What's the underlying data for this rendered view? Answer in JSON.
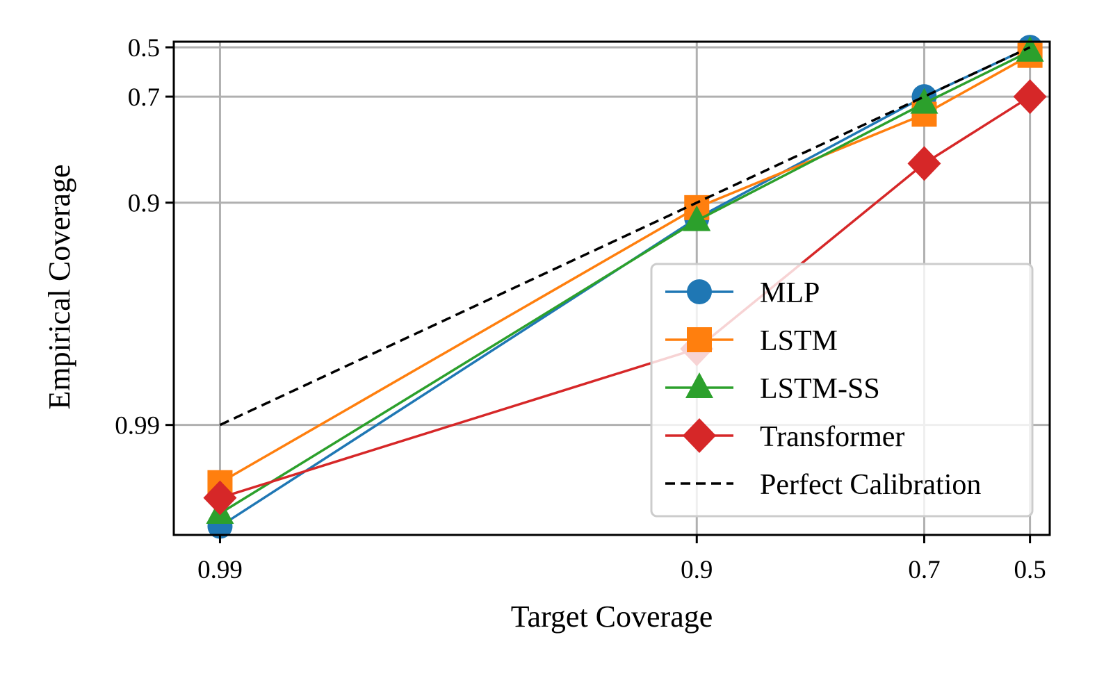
{
  "chart_data": {
    "type": "line",
    "title": "",
    "xlabel": "Target Coverage",
    "ylabel": "Empirical Coverage",
    "scale": "log(1 - coverage), reversed",
    "x_ticks": [
      0.99,
      0.9,
      0.7,
      0.5
    ],
    "x_tick_labels": [
      "0.99",
      "0.9",
      "0.7",
      "0.5"
    ],
    "y_ticks": [
      0.5,
      0.7,
      0.9,
      0.99
    ],
    "y_tick_labels": [
      "0.5",
      "0.7",
      "0.9",
      "0.99"
    ],
    "xlim": [
      0.992,
      0.45
    ],
    "ylim": [
      0.9968,
      0.47
    ],
    "grid": true,
    "legend_position": "lower-right",
    "x": [
      0.99,
      0.9,
      0.7,
      0.5
    ],
    "series": [
      {
        "name": "MLP",
        "color": "#1f77b4",
        "marker": "circle",
        "values": [
          0.9965,
          0.915,
          0.7,
          0.5
        ]
      },
      {
        "name": "LSTM",
        "color": "#ff7f0e",
        "marker": "square",
        "values": [
          0.9945,
          0.905,
          0.75,
          0.54
        ]
      },
      {
        "name": "LSTM-SS",
        "color": "#2ca02c",
        "marker": "triangle",
        "values": [
          0.996,
          0.917,
          0.72,
          0.52
        ]
      },
      {
        "name": "Transformer",
        "color": "#d62728",
        "marker": "diamond",
        "values": [
          0.9953,
          0.978,
          0.85,
          0.7
        ]
      },
      {
        "name": "Perfect Calibration",
        "color": "#000000",
        "marker": "none",
        "dashed": true,
        "values": [
          0.99,
          0.9,
          0.7,
          0.5
        ]
      }
    ]
  }
}
